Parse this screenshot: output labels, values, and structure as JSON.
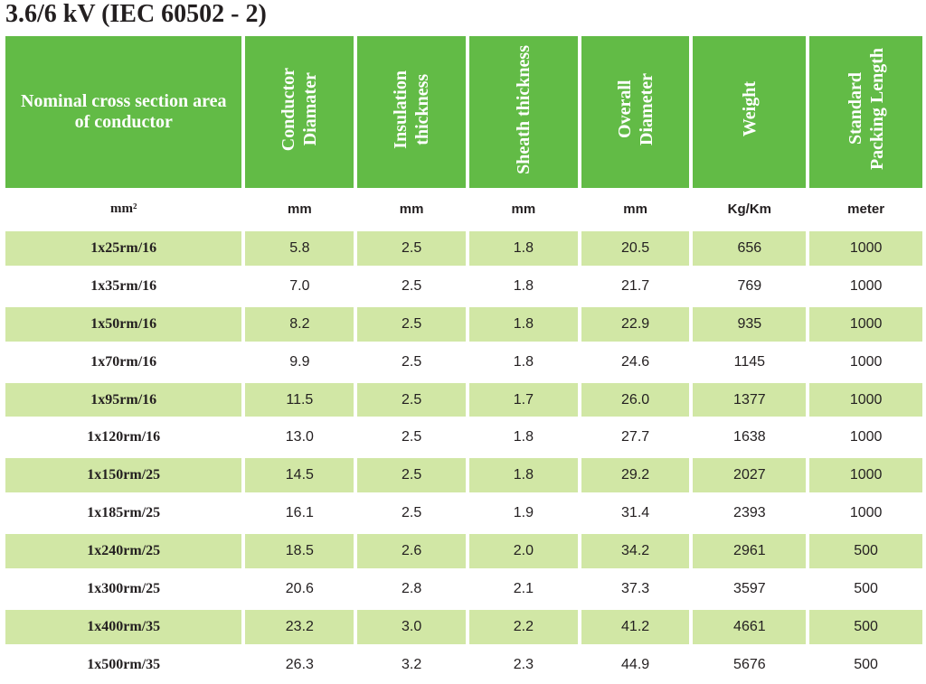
{
  "title": "3.6/6 kV (IEC 60502 - 2)",
  "headers": [
    "Nominal cross section area\nof conductor",
    "Conductor\nDiamater",
    "Insulation\nthickness",
    "Sheath thickness",
    "Overall\nDiameter",
    "Weight",
    "Standard\nPacking Length"
  ],
  "units": [
    "mm²",
    "mm",
    "mm",
    "mm",
    "mm",
    "Kg/Km",
    "meter"
  ],
  "rows": [
    [
      "1x25rm/16",
      "5.8",
      "2.5",
      "1.8",
      "20.5",
      "656",
      "1000"
    ],
    [
      "1x35rm/16",
      "7.0",
      "2.5",
      "1.8",
      "21.7",
      "769",
      "1000"
    ],
    [
      "1x50rm/16",
      "8.2",
      "2.5",
      "1.8",
      "22.9",
      "935",
      "1000"
    ],
    [
      "1x70rm/16",
      "9.9",
      "2.5",
      "1.8",
      "24.6",
      "1145",
      "1000"
    ],
    [
      "1x95rm/16",
      "11.5",
      "2.5",
      "1.7",
      "26.0",
      "1377",
      "1000"
    ],
    [
      "1x120rm/16",
      "13.0",
      "2.5",
      "1.8",
      "27.7",
      "1638",
      "1000"
    ],
    [
      "1x150rm/25",
      "14.5",
      "2.5",
      "1.8",
      "29.2",
      "2027",
      "1000"
    ],
    [
      "1x185rm/25",
      "16.1",
      "2.5",
      "1.9",
      "31.4",
      "2393",
      "1000"
    ],
    [
      "1x240rm/25",
      "18.5",
      "2.6",
      "2.0",
      "34.2",
      "2961",
      "500"
    ],
    [
      "1x300rm/25",
      "20.6",
      "2.8",
      "2.1",
      "37.3",
      "3597",
      "500"
    ],
    [
      "1x400rm/35",
      "23.2",
      "3.0",
      "2.2",
      "41.2",
      "4661",
      "500"
    ],
    [
      "1x500rm/35",
      "26.3",
      "3.2",
      "2.3",
      "44.9",
      "5676",
      "500"
    ]
  ],
  "colors": {
    "header_green": "#62bb46",
    "row_shade": "#d1e7a5",
    "text": "#231f20"
  }
}
